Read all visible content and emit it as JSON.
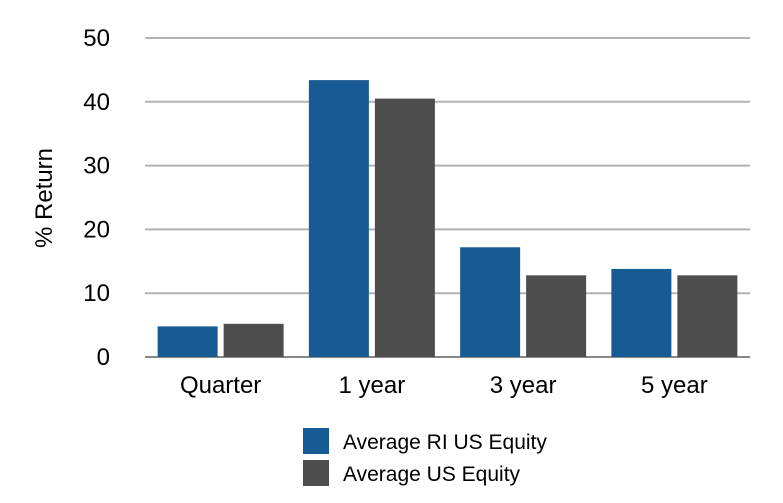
{
  "chart_data": {
    "type": "bar",
    "title": "",
    "xlabel": "",
    "ylabel": "% Return",
    "ylim": [
      0,
      50
    ],
    "yticks": [
      0,
      10,
      20,
      30,
      40,
      50
    ],
    "grid": true,
    "legend_position": "bottom",
    "categories": [
      "Quarter",
      "1 year",
      "3 year",
      "5 year"
    ],
    "series": [
      {
        "name": "Average RI US Equity",
        "color": "#175a94",
        "values": [
          4.8,
          43.4,
          17.2,
          13.8
        ]
      },
      {
        "name": "Average US Equity",
        "color": "#4d4d4d",
        "values": [
          5.2,
          40.5,
          12.8,
          12.8
        ]
      }
    ]
  }
}
